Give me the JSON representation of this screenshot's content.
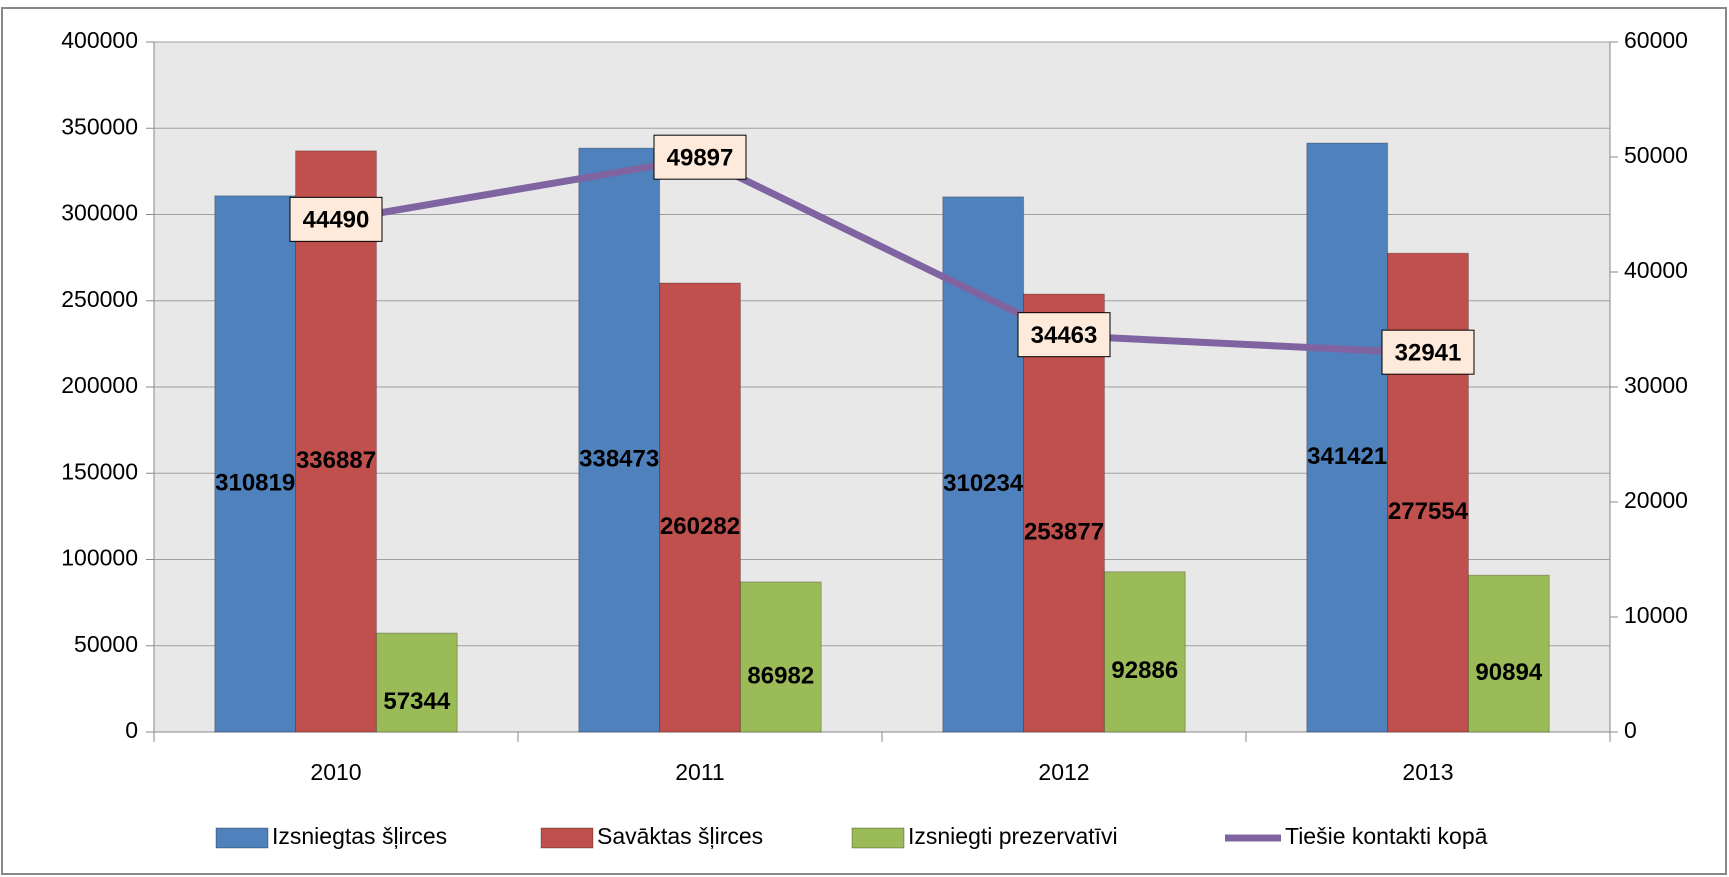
{
  "chart_data": {
    "type": "bar",
    "categories": [
      "2010",
      "2011",
      "2012",
      "2013"
    ],
    "series": [
      {
        "name": "Izsniegtas šļirces",
        "color": "#4f81bd",
        "values": [
          310819,
          338473,
          310234,
          341421
        ]
      },
      {
        "name": "Savāktas šļirces",
        "color": "#c0504d",
        "values": [
          336887,
          260282,
          253877,
          277554
        ]
      },
      {
        "name": "Izsniegti prezervatīvi",
        "color": "#9bbb59",
        "values": [
          57344,
          86982,
          92886,
          90894
        ]
      },
      {
        "name": "Tiešie kontakti kopā",
        "color": "#8064a2",
        "type": "line",
        "axis": "y2",
        "values": [
          44490,
          49897,
          34463,
          32941
        ]
      }
    ],
    "ylim": [
      0,
      400000
    ],
    "yticks": [
      0,
      50000,
      100000,
      150000,
      200000,
      250000,
      300000,
      350000,
      400000
    ],
    "y2lim": [
      0,
      60000
    ],
    "y2ticks": [
      0,
      10000,
      20000,
      30000,
      40000,
      50000,
      60000
    ],
    "grid": true,
    "legend": "bottom"
  }
}
